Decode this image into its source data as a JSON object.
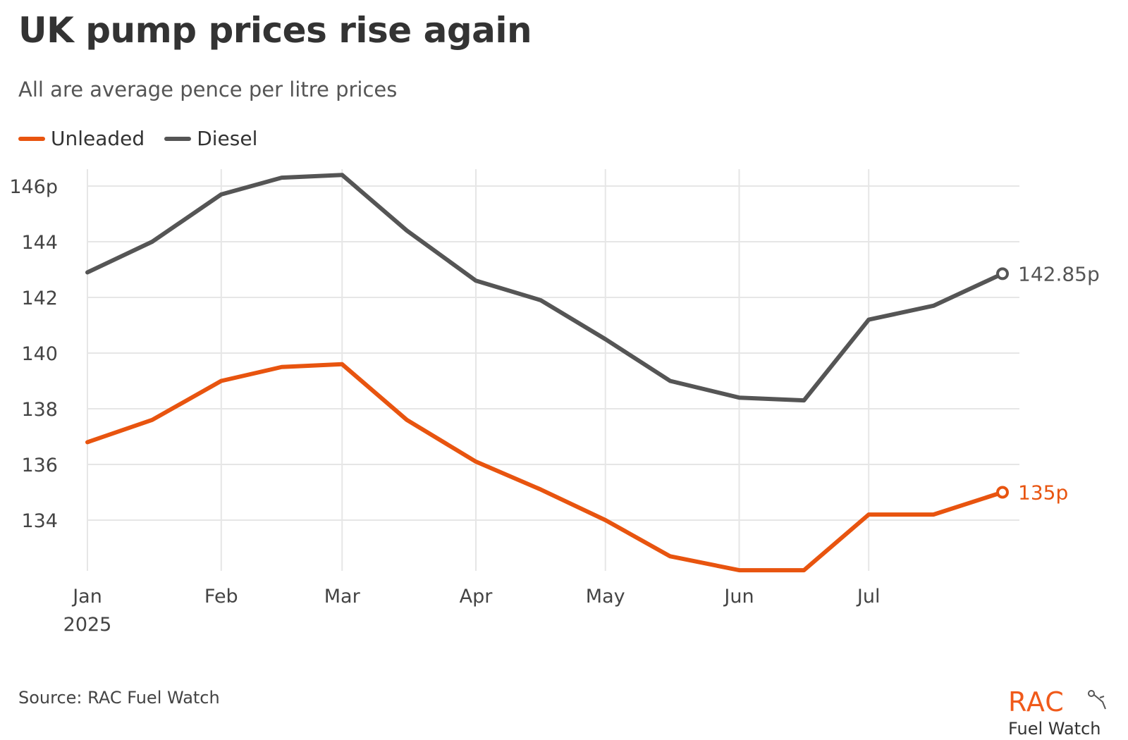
{
  "header": {
    "title": "UK pump prices rise again",
    "subtitle": "All are average pence per litre prices"
  },
  "legend": [
    {
      "label": "Unleaded",
      "color": "#e8540f"
    },
    {
      "label": "Diesel",
      "color": "#555555"
    }
  ],
  "footer": {
    "source": "Source: RAC Fuel Watch",
    "brand": "RAC",
    "brand_sub": "Fuel Watch"
  },
  "chart_data": {
    "type": "line",
    "x": [
      "2025-01-01",
      "2025-01-16",
      "2025-02-01",
      "2025-02-15",
      "2025-03-01",
      "2025-03-16",
      "2025-04-01",
      "2025-04-16",
      "2025-05-01",
      "2025-05-16",
      "2025-06-01",
      "2025-06-16",
      "2025-07-01",
      "2025-07-16",
      "2025-08-01"
    ],
    "x_tick_labels": [
      {
        "date": "2025-01-01",
        "label": "Jan",
        "sublabel": "2025"
      },
      {
        "date": "2025-02-01",
        "label": "Feb"
      },
      {
        "date": "2025-03-01",
        "label": "Mar"
      },
      {
        "date": "2025-04-01",
        "label": "Apr"
      },
      {
        "date": "2025-05-01",
        "label": "May"
      },
      {
        "date": "2025-06-01",
        "label": "Jun"
      },
      {
        "date": "2025-07-01",
        "label": "Jul"
      }
    ],
    "y_ticks": [
      146,
      144,
      142,
      140,
      138,
      136,
      134
    ],
    "y_tick_labels": [
      "146p",
      "144",
      "142",
      "140",
      "138",
      "136",
      "134"
    ],
    "ylim": [
      132.3,
      146.6
    ],
    "grid": true,
    "legend_position": "top-left",
    "series": [
      {
        "name": "Unleaded",
        "color": "#e8540f",
        "values": [
          136.8,
          137.6,
          139.0,
          139.5,
          139.6,
          137.6,
          136.1,
          135.1,
          134.0,
          132.7,
          132.2,
          132.2,
          134.2,
          134.2,
          135.0
        ],
        "end_label": "135p"
      },
      {
        "name": "Diesel",
        "color": "#555555",
        "values": [
          142.9,
          144.0,
          145.7,
          146.3,
          146.4,
          144.4,
          142.6,
          141.9,
          140.5,
          139.0,
          138.4,
          138.3,
          141.2,
          141.7,
          142.85
        ],
        "end_label": "142.85p"
      }
    ]
  }
}
